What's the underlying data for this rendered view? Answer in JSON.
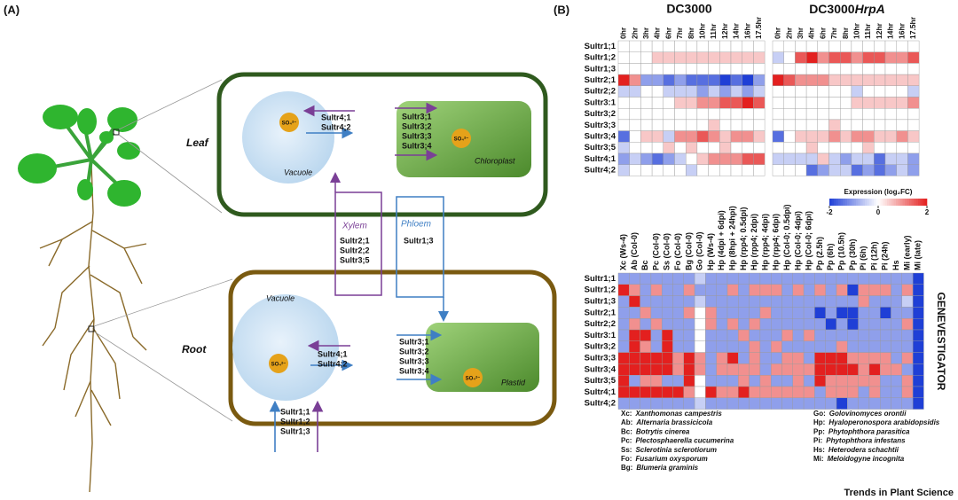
{
  "panel_a": {
    "label": "(A)",
    "leaf": "Leaf",
    "root": "Root",
    "vacuole_leaf": "Vacuole",
    "vacuole_root": "Vacuole",
    "chloroplast": "Chloroplast",
    "plastid": "Plastid",
    "xylem": "Xylem",
    "phloem": "Phloem",
    "sulfate": "SO₄²⁻",
    "leaf_vacuole_transporters": [
      "Sultr4;1",
      "Sultr4;2"
    ],
    "leaf_chloroplast_transporters": [
      "Sultr3;1",
      "Sultr3;2",
      "Sultr3;3",
      "Sultr3;4"
    ],
    "xylem_transporters": [
      "Sultr2;1",
      "Sultr2;2",
      "Sultr3;5"
    ],
    "phloem_transporters": [
      "Sultr1;3"
    ],
    "root_vacuole_transporters": [
      "Sultr4;1",
      "Sultr4;2"
    ],
    "root_plastid_transporters": [
      "Sultr3;1",
      "Sultr3;2",
      "Sultr3;3",
      "Sultr3;4"
    ],
    "root_uptake_transporters": [
      "Sultr1;1",
      "Sultr1;2",
      "Sultr1;3"
    ]
  },
  "panel_b": {
    "label": "(B)",
    "genes": [
      "Sultr1;1",
      "Sultr1;2",
      "Sultr1;3",
      "Sultr2;1",
      "Sultr2;2",
      "Sultr3:1",
      "Sultr3;2",
      "Sultr3;3",
      "Sultr3;4",
      "Sultr3;5",
      "Sultr4;1",
      "Sultr4;2"
    ],
    "top": {
      "title_left": "DC3000",
      "title_right": "DC3000",
      "title_right_italic": "HrpA",
      "columns": [
        "0hr",
        "2hr",
        "3hr",
        "4hr",
        "6hr",
        "7hr",
        "8hr",
        "10hr",
        "11hr",
        "12hr",
        "14hr",
        "16hr",
        "17.5hr"
      ],
      "dc3000": [
        [
          0,
          0,
          0,
          0,
          0,
          0,
          0,
          0,
          0,
          0,
          0,
          0,
          0
        ],
        [
          0,
          0,
          0,
          0.5,
          0.5,
          0.5,
          0.5,
          0.5,
          0.5,
          0.5,
          0.5,
          0.5,
          0.5
        ],
        [
          0,
          0,
          0,
          0,
          0,
          0,
          0,
          0,
          0,
          0,
          0,
          0,
          0
        ],
        [
          2,
          1,
          -1,
          -1,
          -1.5,
          -1,
          -1.5,
          -1.5,
          -1.5,
          -2,
          -1.5,
          -2,
          -1
        ],
        [
          -0.5,
          -0.5,
          0,
          0,
          -0.5,
          -0.5,
          -0.5,
          -1,
          -0.5,
          -1,
          -0.5,
          -1,
          -0.5
        ],
        [
          0,
          0,
          0,
          0,
          0,
          0.5,
          0.5,
          1,
          1,
          1.5,
          1.5,
          2,
          1.5
        ],
        [
          0,
          0,
          0,
          0,
          0,
          0,
          0,
          0,
          0,
          0,
          0,
          0,
          0
        ],
        [
          0,
          0,
          0,
          0,
          0,
          0,
          0,
          0,
          0.5,
          0,
          0,
          0,
          0
        ],
        [
          -1.5,
          0,
          0.5,
          0.5,
          -0.5,
          1,
          1,
          1.5,
          1,
          0.5,
          1,
          1,
          0.5
        ],
        [
          -0.5,
          0,
          0,
          0,
          0.5,
          0,
          0.5,
          0,
          0,
          0.5,
          0,
          0,
          0
        ],
        [
          -1,
          -0.5,
          -1,
          -1.5,
          -1,
          -0.5,
          0,
          0.5,
          1,
          1,
          1,
          1.5,
          1.5
        ],
        [
          -0.5,
          0,
          0,
          0,
          0,
          0,
          -0.5,
          0,
          0,
          0,
          0,
          0,
          0
        ]
      ],
      "hrpa": [
        [
          0,
          0,
          0,
          0,
          0,
          0,
          0,
          0,
          0,
          0,
          0,
          0,
          0
        ],
        [
          -0.5,
          0,
          1.5,
          2,
          1,
          1.5,
          1.5,
          1,
          1.5,
          1.5,
          1,
          1,
          1.5
        ],
        [
          0,
          0,
          0,
          0,
          0,
          0,
          0,
          0,
          0,
          0,
          0,
          0,
          0
        ],
        [
          2,
          1.5,
          1,
          1,
          1,
          0.5,
          0.5,
          0.5,
          0.5,
          0.5,
          0.5,
          0.5,
          0.5
        ],
        [
          0,
          0,
          0,
          0,
          0,
          0,
          0,
          -0.5,
          0,
          0,
          0,
          0,
          -0.5
        ],
        [
          0,
          0,
          0,
          0,
          0,
          0,
          0,
          0.5,
          0.5,
          0.5,
          0.5,
          0.5,
          1
        ],
        [
          0,
          0,
          0,
          0,
          0,
          0,
          0,
          0,
          0,
          0,
          0,
          0,
          0
        ],
        [
          0,
          0,
          0,
          0,
          0,
          0.5,
          0,
          0,
          0,
          0,
          0,
          0,
          0
        ],
        [
          -1.5,
          0,
          0.5,
          0.5,
          0.5,
          1,
          0.5,
          1,
          1,
          0.5,
          0.5,
          1,
          0.5
        ],
        [
          0,
          0,
          0,
          0.5,
          0,
          0,
          0,
          0,
          0.5,
          0,
          0,
          0,
          0
        ],
        [
          -0.5,
          -0.5,
          -0.5,
          -0.5,
          0.5,
          -0.5,
          -1,
          -0.5,
          -0.5,
          -1.5,
          -0.5,
          -0.5,
          -1
        ],
        [
          0,
          0,
          0,
          -1.5,
          -1,
          -0.5,
          -0.5,
          -1.5,
          -1,
          -1.5,
          -1,
          -0.5,
          -1
        ]
      ]
    },
    "colorbar": {
      "label": "Expression (log₂FC)",
      "range": [
        -2,
        2
      ],
      "ticks": [
        -2,
        0,
        2
      ]
    },
    "bottom": {
      "source": "GENEVESTIGATOR",
      "columns": [
        "Xc (Ws-4)",
        "Ab (Col-0)",
        "Bc",
        "Pc (Col-0)",
        "Ss (Col-0)",
        "Fo (Col-0)",
        "Bg (Col-0)",
        "Go (Col-0)",
        "Hp (Ws-4)",
        "Hp (4dpi + 6dpi)",
        "Hp (8hpi + 24hpi)",
        "Hp (rpp4; 0.5dpi)",
        "Hp (rpp4; 2dpi)",
        "Hp (rpp4; 4dpi)",
        "Hp (rpp4; 6dpi)",
        "Hp (Col-0; 0.5dpi)",
        "Hp (Col-0; 4dpi)",
        "Hp (Col-0; 6dpi)",
        "Pp (2.5h)",
        "Pp (6h)",
        "Pp (10.5h)",
        "Pp (30h)",
        "Pi (6h)",
        "Pi (12h)",
        "Pi (24h)",
        "Hs",
        "Mi (early)",
        "Mi (late)"
      ],
      "values": [
        [
          -1,
          -1,
          -1,
          -1,
          -1,
          -1,
          -1,
          -0.5,
          -1,
          -1,
          -1,
          -1,
          -1,
          -1,
          -1,
          -1,
          -1,
          -1,
          -1,
          -1,
          -1,
          -1,
          -1,
          -1,
          -1,
          -1,
          -1,
          -2
        ],
        [
          2,
          1,
          -1,
          1,
          -1,
          -1,
          1,
          -1,
          -1,
          -1,
          1,
          -1,
          1,
          1,
          1,
          -1,
          1,
          -1,
          1,
          -1,
          1,
          -2,
          1,
          1,
          1,
          -1,
          1,
          -2
        ],
        [
          -1,
          2,
          -1,
          -1,
          -1,
          -1,
          -1,
          -0.5,
          -1,
          -1,
          -1,
          -1,
          -1,
          -1,
          -1,
          -1,
          -1,
          -1,
          -1,
          -1,
          -1,
          -1,
          1,
          -1,
          -1,
          -1,
          -0.5,
          -2
        ],
        [
          -1,
          -1,
          1,
          -1,
          -1,
          -1,
          1,
          0,
          1,
          -1,
          -1,
          -1,
          -1,
          1,
          -1,
          -1,
          -1,
          -1,
          -2,
          -1,
          -2,
          -2,
          -1,
          -1,
          -2,
          -1,
          -1,
          -2
        ],
        [
          -1,
          1,
          -1,
          1,
          -1,
          -1,
          -1,
          0,
          1,
          -1,
          1,
          -1,
          1,
          -1,
          -1,
          -1,
          -1,
          -1,
          -1,
          -2,
          -1,
          -2,
          -1,
          -1,
          -1,
          -1,
          1,
          -2
        ],
        [
          -1,
          2,
          2,
          -1,
          2,
          -1,
          -1,
          0,
          -1,
          -1,
          -1,
          1,
          -1,
          -1,
          -1,
          1,
          -1,
          1,
          -1,
          -1,
          -1,
          -1,
          -1,
          -1,
          -1,
          -1,
          -1,
          -2
        ],
        [
          -1,
          2,
          1,
          -1,
          2,
          -1,
          -1,
          0,
          -1,
          -1,
          -1,
          -1,
          1,
          -1,
          1,
          -1,
          -1,
          -1,
          -1,
          -1,
          1,
          -1,
          -1,
          -1,
          -1,
          -1,
          -1,
          -2
        ],
        [
          2,
          2,
          2,
          2,
          2,
          1,
          2,
          1,
          -1,
          1,
          2,
          -1,
          1,
          -1,
          -1,
          1,
          1,
          -1,
          2,
          2,
          2,
          1,
          1,
          1,
          1,
          -1,
          1,
          -2
        ],
        [
          2,
          2,
          2,
          2,
          2,
          1,
          2,
          1,
          -1,
          1,
          1,
          1,
          1,
          -1,
          1,
          1,
          1,
          1,
          2,
          2,
          2,
          2,
          1,
          2,
          1,
          1,
          -1,
          -2
        ],
        [
          2,
          -1,
          1,
          1,
          -1,
          -1,
          2,
          0,
          -1,
          -1,
          -1,
          1,
          -1,
          1,
          -1,
          -1,
          1,
          -1,
          2,
          1,
          1,
          1,
          1,
          1,
          -1,
          -1,
          1,
          -2
        ],
        [
          2,
          2,
          2,
          2,
          2,
          2,
          1,
          0,
          2,
          1,
          1,
          2,
          1,
          1,
          1,
          1,
          1,
          1,
          -1,
          1,
          1,
          1,
          -1,
          1,
          -1,
          -1,
          1,
          -2
        ],
        [
          -1,
          -1,
          -1,
          -1,
          -1,
          -1,
          -1,
          -0.5,
          -1,
          -1,
          -1,
          -1,
          -1,
          -1,
          -1,
          -1,
          -1,
          -1,
          -1,
          -1,
          -2,
          -1,
          -1,
          -1,
          -1,
          -1,
          -1,
          -2
        ]
      ]
    },
    "abbreviations": [
      {
        "code": "Xc:",
        "name": "Xanthomonas campestris"
      },
      {
        "code": "Ab:",
        "name": "Alternaria brassicicola"
      },
      {
        "code": "Bc:",
        "name": "Botrytis cinerea"
      },
      {
        "code": "Pc:",
        "name": "Plectosphaerella cucumerina"
      },
      {
        "code": "Ss:",
        "name": "Sclerotinia sclerotiorum"
      },
      {
        "code": "Fo:",
        "name": "Fusarium oxysporum"
      },
      {
        "code": "Bg:",
        "name": "Blumeria graminis"
      },
      {
        "code": "Go:",
        "name": "Golovinomyces orontii"
      },
      {
        "code": "Hp:",
        "name": "Hyaloperonospora arabidopsidis"
      },
      {
        "code": "Pp:",
        "name": "Phytophthora parasitica"
      },
      {
        "code": "Pi:",
        "name": "Phytophthora infestans"
      },
      {
        "code": "Hs:",
        "name": "Heterodera schachtii"
      },
      {
        "code": "Mi:",
        "name": "Meloidogyne incognita"
      }
    ]
  },
  "footer": "Trends in Plant Science"
}
